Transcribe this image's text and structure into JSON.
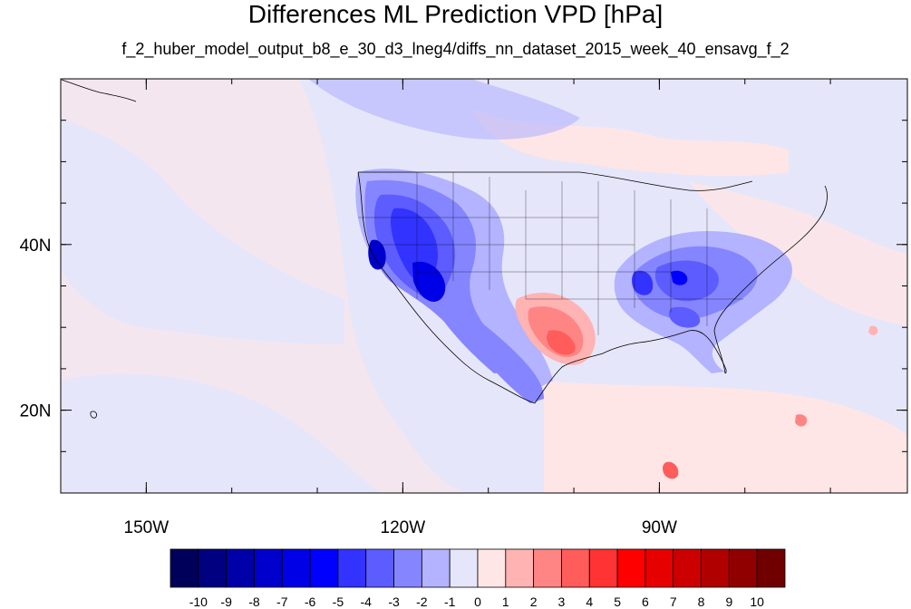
{
  "title": "Differences ML Prediction VPD [hPa]",
  "subtitle": "f_2_huber_model_output_b8_e_30_d3_lneg4/diffs_nn_dataset_2015_week_40_ensavg_f_2",
  "map": {
    "lon_range": [
      -160,
      -61
    ],
    "lat_range": [
      10,
      60
    ],
    "lon_ticks": [
      {
        "value": -150,
        "label": "150W"
      },
      {
        "value": -120,
        "label": "120W"
      },
      {
        "value": -90,
        "label": "90W"
      }
    ],
    "lat_ticks": [
      {
        "value": 40,
        "label": "40N"
      },
      {
        "value": 20,
        "label": "20N"
      }
    ]
  },
  "colorbar": {
    "labels": [
      "-10",
      "-9",
      "-8",
      "-7",
      "-6",
      "-5",
      "-4",
      "-3",
      "-2",
      "-1",
      "0",
      "1",
      "2",
      "3",
      "4",
      "5",
      "6",
      "7",
      "8",
      "9",
      "10"
    ],
    "colors": [
      "#00005a",
      "#000080",
      "#0000a8",
      "#0000cc",
      "#0000e6",
      "#0000ff",
      "#3333ff",
      "#5c5cff",
      "#8585ff",
      "#b3b3ff",
      "#e6e6fa",
      "#ffe6e6",
      "#ffb3b3",
      "#ff8585",
      "#ff5c5c",
      "#ff3333",
      "#ff0000",
      "#e60000",
      "#cc0000",
      "#b00000",
      "#900000",
      "#700000"
    ]
  }
}
